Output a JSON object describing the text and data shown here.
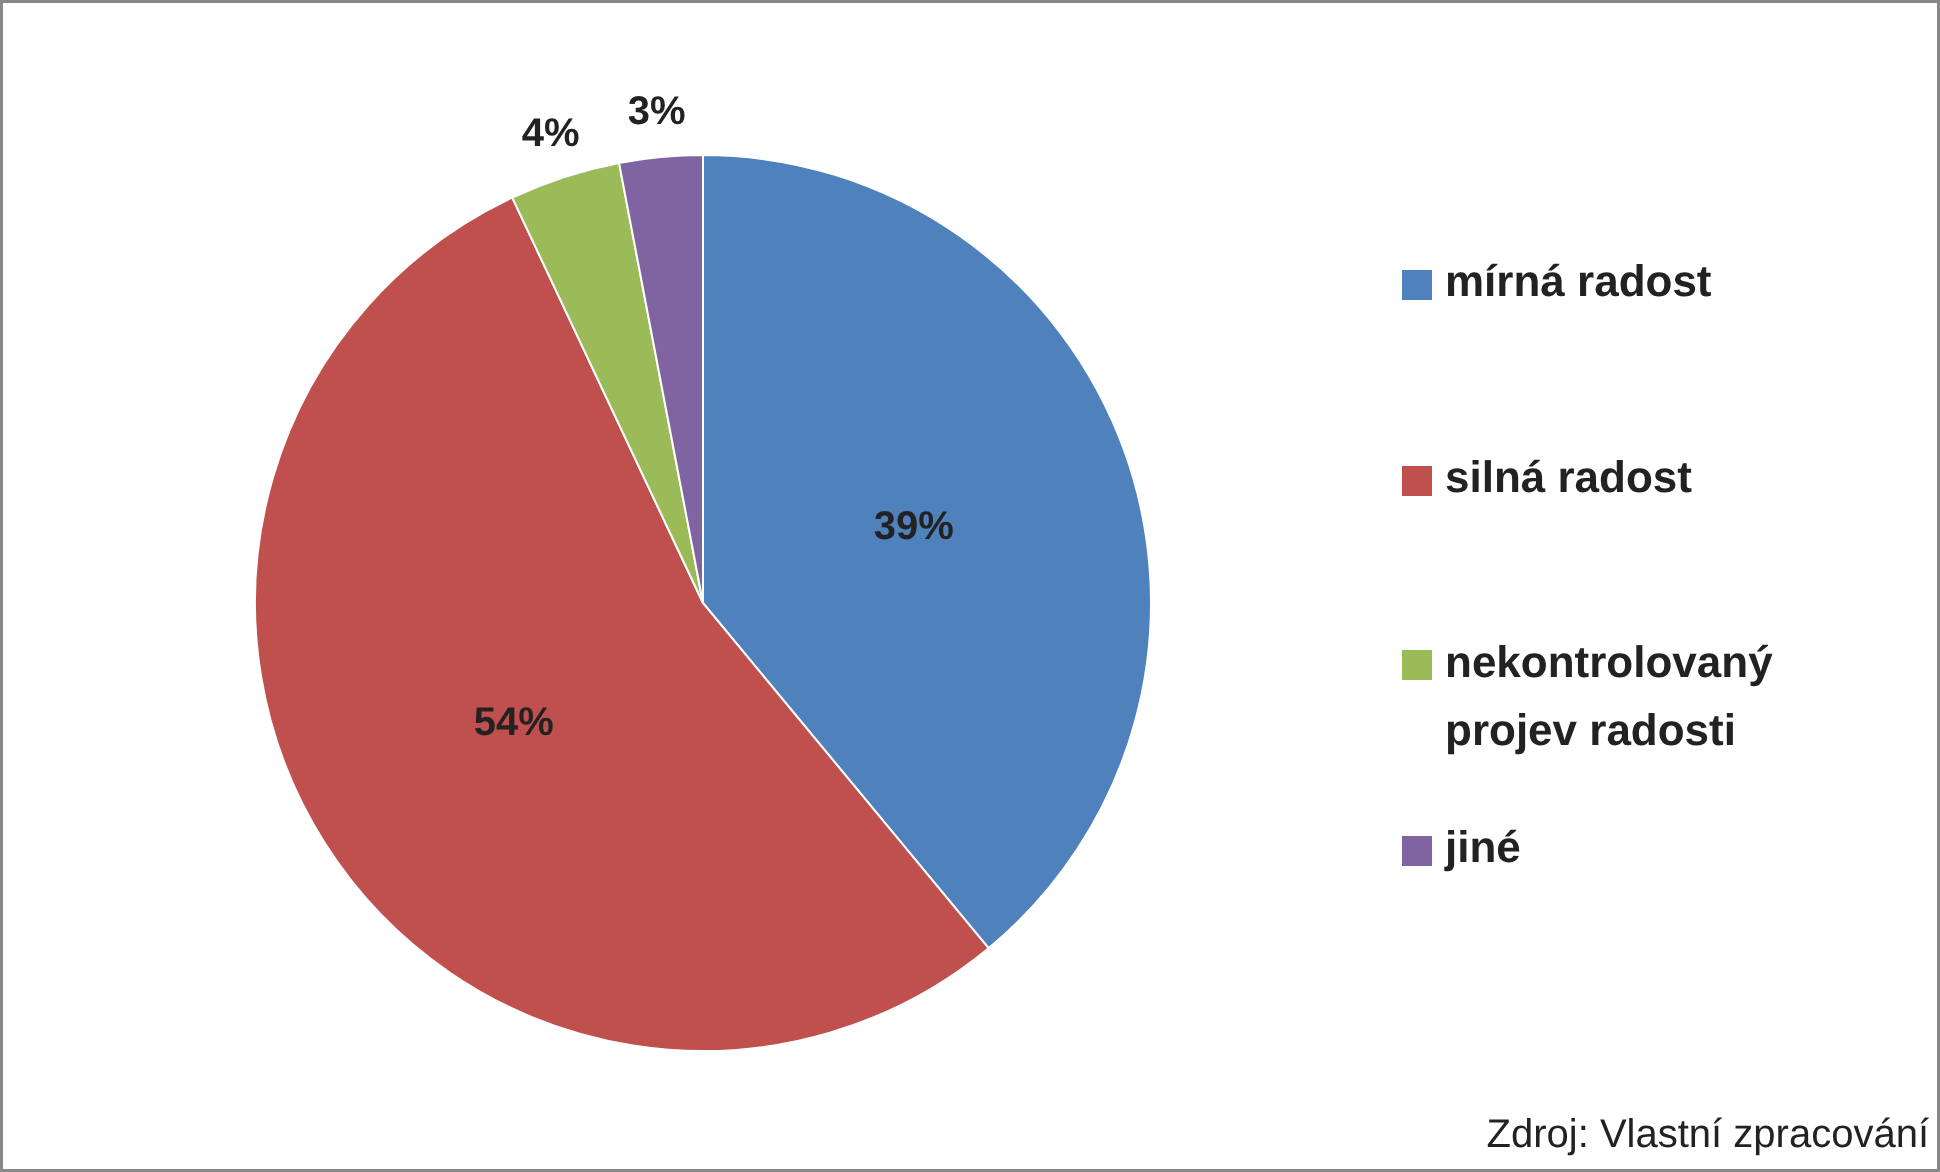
{
  "chart_data": {
    "type": "pie",
    "categories": [
      "mírná radost",
      "silná radost",
      "nekontrolovaný projev radosti",
      "jiné"
    ],
    "values": [
      39,
      54,
      4,
      3
    ],
    "colors": [
      "#4f81bd",
      "#c0504d",
      "#9bbb59",
      "#8064a2"
    ],
    "value_labels": [
      "39%",
      "54%",
      "4%",
      "3%"
    ],
    "legend": "right",
    "annotations": [
      "Zdroj: Vlastní zpracování"
    ]
  }
}
